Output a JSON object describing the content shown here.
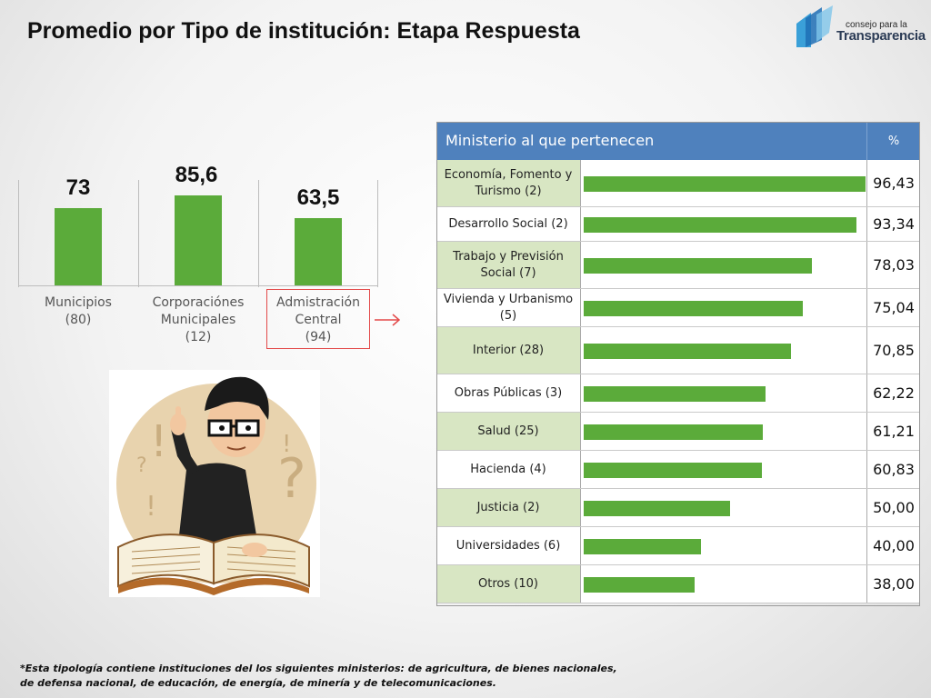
{
  "title": "Promedio por Tipo de institución: Etapa Respuesta",
  "logo": {
    "small": "consejo para la",
    "big": "Transparencia"
  },
  "column_chart": {
    "items": [
      {
        "value_label": "73",
        "label_lines": [
          "Municipios",
          "(80)"
        ]
      },
      {
        "value_label": "85,6",
        "label_lines": [
          "Corporaciónes",
          "Municipales",
          "(12)"
        ]
      },
      {
        "value_label": "63,5",
        "label_lines": [
          "Admistración",
          "Central",
          "(94)"
        ]
      }
    ]
  },
  "table": {
    "header_label": "Ministerio al que pertenecen",
    "header_pct": "%",
    "rows": [
      {
        "label": "Economía, Fomento y Turismo (2)",
        "value_label": "96,43"
      },
      {
        "label": "Desarrollo Social (2)",
        "value_label": "93,34"
      },
      {
        "label": "Trabajo y Previsión Social (7)",
        "value_label": "78,03"
      },
      {
        "label": "Vivienda y Urbanismo (5)",
        "value_label": "75,04"
      },
      {
        "label": "Interior (28)",
        "value_label": "70,85"
      },
      {
        "label": "Obras Públicas (3)",
        "value_label": "62,22"
      },
      {
        "label": "Salud (25)",
        "value_label": "61,21"
      },
      {
        "label": "Hacienda (4)",
        "value_label": "60,83"
      },
      {
        "label": "Justicia (2)",
        "value_label": "50,00"
      },
      {
        "label": "Universidades (6)",
        "value_label": "40,00"
      },
      {
        "label": "Otros (10)",
        "value_label": "38,00"
      }
    ]
  },
  "footnote": {
    "line1": "*Esta tipología contiene instituciones del los siguientes ministerios: de agricultura, de bienes nacionales,",
    "line2": "de defensa nacional, de educación, de energía, de minería y de telecomunicaciones."
  },
  "colors": {
    "bar": "#5bab3a",
    "header": "#4f81bd",
    "row_alt": "#d8e6c3",
    "highlight": "#e34a4a"
  },
  "chart_data": [
    {
      "type": "bar",
      "categories": [
        "Municipios (80)",
        "Corporaciónes Municipales (12)",
        "Admistración Central (94)"
      ],
      "values": [
        73,
        85.6,
        63.5
      ]
    },
    {
      "type": "bar",
      "orientation": "horizontal",
      "categories": [
        "Economía, Fomento y Turismo (2)",
        "Desarrollo Social (2)",
        "Trabajo y Previsión Social (7)",
        "Vivienda y Urbanismo (5)",
        "Interior (28)",
        "Obras Públicas (3)",
        "Salud (25)",
        "Hacienda (4)",
        "Justicia (2)",
        "Universidades (6)",
        "Otros (10)"
      ],
      "values": [
        96.43,
        93.34,
        78.03,
        75.04,
        70.85,
        62.22,
        61.21,
        60.83,
        50.0,
        40.0,
        38.0
      ]
    }
  ]
}
